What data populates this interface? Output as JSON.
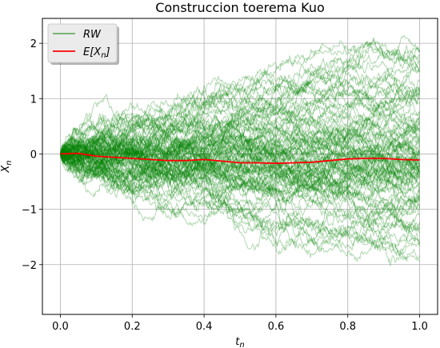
{
  "chart_data": {
    "type": "line",
    "title": "Construccion toerema Kuo",
    "xlabel": "t_n",
    "ylabel": "X_n",
    "xlim": [
      -0.05,
      1.05
    ],
    "ylim": [
      -2.9,
      2.45
    ],
    "xticks": [
      0.0,
      0.2,
      0.4,
      0.6,
      0.8,
      1.0
    ],
    "xtick_labels": [
      "0.0",
      "0.2",
      "0.4",
      "0.6",
      "0.8",
      "1.0"
    ],
    "yticks": [
      -2,
      -1,
      0,
      1,
      2
    ],
    "ytick_labels": [
      "−2",
      "−1",
      "0",
      "1",
      "2"
    ],
    "grid": true,
    "legend_placement": "upper-left",
    "legend": [
      {
        "label": "RW",
        "color": "#008000"
      },
      {
        "label": "E[X_n]",
        "color": "#ff0000"
      }
    ],
    "series": [
      {
        "name": "E[X_n]",
        "color": "#ff0000",
        "x": [
          0.0,
          0.05,
          0.1,
          0.15,
          0.2,
          0.25,
          0.3,
          0.35,
          0.4,
          0.45,
          0.5,
          0.55,
          0.6,
          0.65,
          0.7,
          0.75,
          0.8,
          0.85,
          0.9,
          0.95,
          1.0
        ],
        "y": [
          0.0,
          0.01,
          -0.04,
          -0.06,
          -0.08,
          -0.1,
          -0.12,
          -0.12,
          -0.1,
          -0.13,
          -0.16,
          -0.16,
          -0.17,
          -0.16,
          -0.15,
          -0.12,
          -0.09,
          -0.08,
          -0.08,
          -0.1,
          -0.11
        ]
      }
    ],
    "rw_paths": {
      "color": "#008000",
      "count": 100,
      "steps": 500,
      "x_range": [
        0.0,
        1.0
      ],
      "start": 0.0
    }
  }
}
